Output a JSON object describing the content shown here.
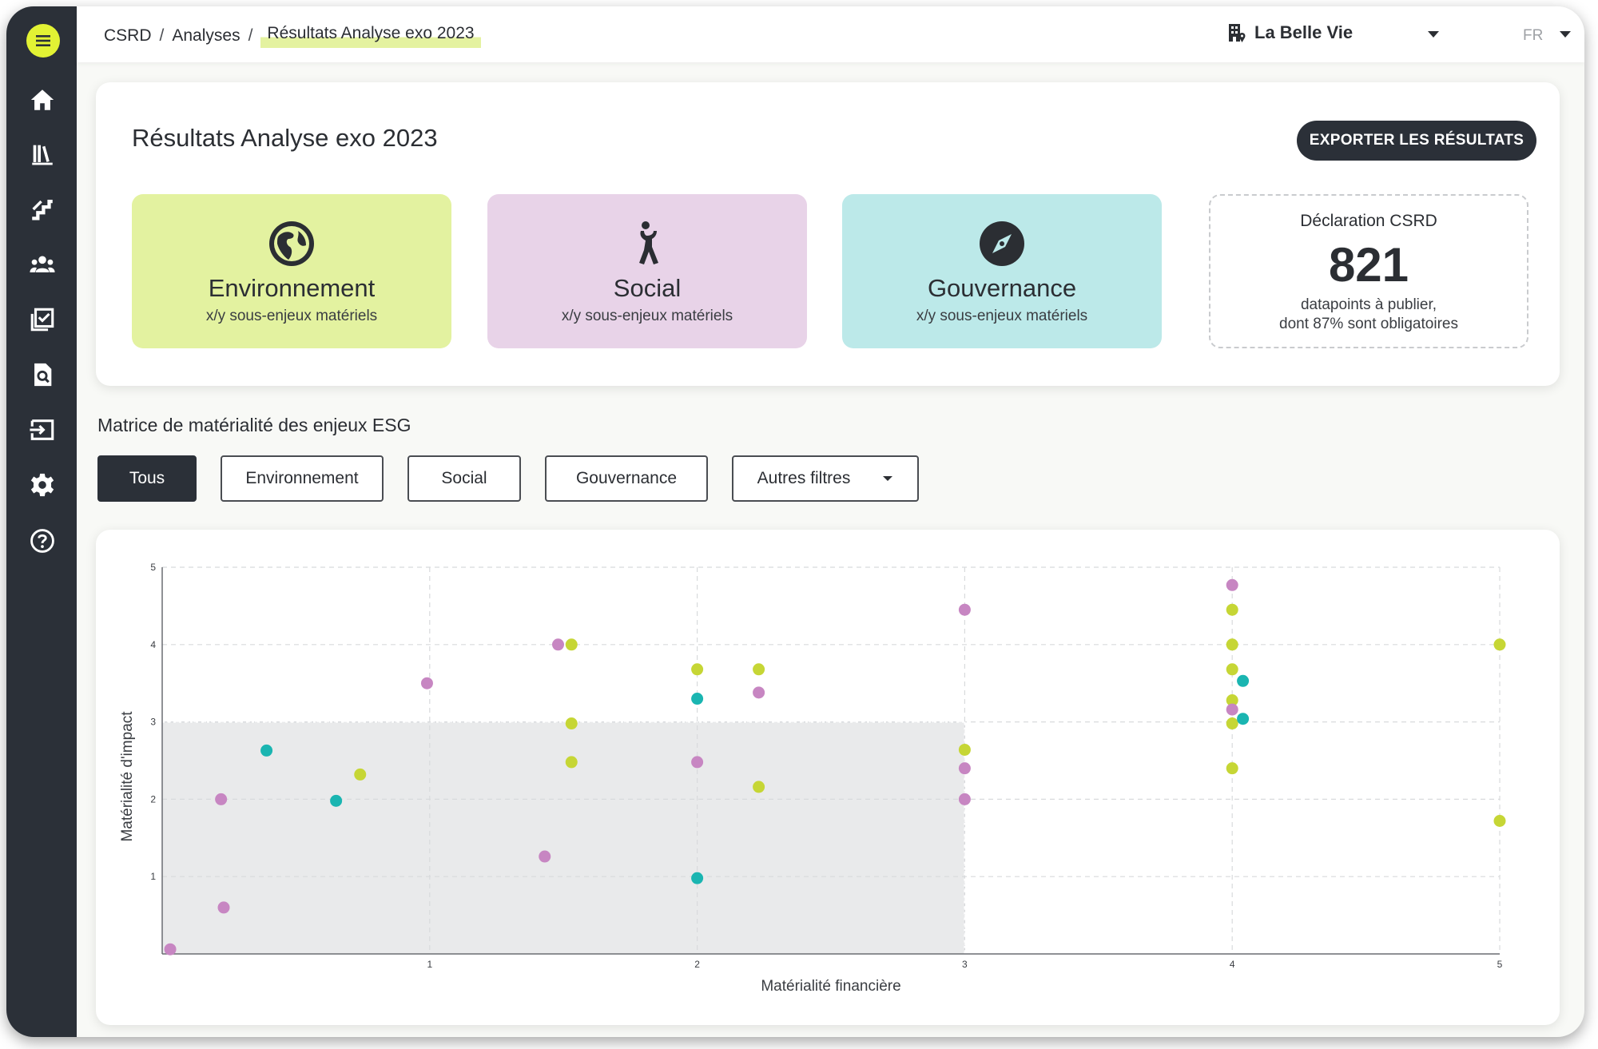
{
  "breadcrumb": {
    "items": [
      "CSRD",
      "Analyses"
    ],
    "current": "Résultats Analyse exo 2023",
    "separator": "/"
  },
  "header": {
    "organization": "La Belle Vie",
    "language": "FR"
  },
  "sidebar": {
    "items": [
      {
        "name": "home",
        "icon": "home-icon"
      },
      {
        "name": "library",
        "icon": "library-icon"
      },
      {
        "name": "steps",
        "icon": "stairs-icon"
      },
      {
        "name": "stakeholders",
        "icon": "users-icon"
      },
      {
        "name": "tasks",
        "icon": "checklist-icon"
      },
      {
        "name": "audit",
        "icon": "document-search-icon"
      },
      {
        "name": "import",
        "icon": "import-icon"
      },
      {
        "name": "settings",
        "icon": "gear-icon"
      },
      {
        "name": "help",
        "icon": "help-icon"
      }
    ]
  },
  "summary": {
    "title": "Résultats Analyse exo 2023",
    "export_label": "EXPORTER LES RÉSULTATS",
    "tiles": [
      {
        "name": "Environnement",
        "sub": "x/y sous-enjeux matériels",
        "color": "#e3f2a0",
        "icon": "globe-icon"
      },
      {
        "name": "Social",
        "sub": "x/y sous-enjeux matériels",
        "color": "#e8d3e8",
        "icon": "person-icon"
      },
      {
        "name": "Gouvernance",
        "sub": "x/y sous-enjeux matériels",
        "color": "#bce9e9",
        "icon": "compass-icon"
      }
    ],
    "declaration": {
      "title": "Déclaration CSRD",
      "count": "821",
      "line1": "datapoints à publier,",
      "line2": "dont 87% sont obligatoires"
    }
  },
  "matrix": {
    "title": "Matrice de matérialité des enjeux ESG",
    "filters": [
      "Tous",
      "Environnement",
      "Social",
      "Gouvernance"
    ],
    "active_filter": "Tous",
    "more_filters": "Autres filtres"
  },
  "chart_data": {
    "type": "scatter",
    "xlabel": "Matérialité financière",
    "ylabel": "Matérialité d'impact",
    "xlim": [
      0,
      5
    ],
    "ylim": [
      0,
      5
    ],
    "xticks": [
      1,
      2,
      3,
      4,
      5
    ],
    "yticks": [
      1,
      2,
      3,
      4,
      5
    ],
    "grid": "dashed",
    "shaded_region": {
      "x": [
        0,
        3
      ],
      "y": [
        0,
        3
      ]
    },
    "colors": {
      "Environnement": "#c6d635",
      "Social": "#c786c2",
      "Gouvernance": "#1ab5b1"
    },
    "series": [
      {
        "name": "Environnement",
        "points": [
          [
            1.53,
            4.0
          ],
          [
            2.0,
            3.68
          ],
          [
            2.23,
            3.68
          ],
          [
            1.53,
            2.98
          ],
          [
            1.53,
            2.48
          ],
          [
            0.74,
            2.32
          ],
          [
            2.23,
            2.16
          ],
          [
            3.0,
            2.64
          ],
          [
            4.0,
            4.45
          ],
          [
            4.0,
            4.0
          ],
          [
            4.0,
            3.68
          ],
          [
            4.0,
            3.28
          ],
          [
            4.0,
            2.98
          ],
          [
            4.0,
            2.4
          ],
          [
            5.0,
            4.0
          ],
          [
            5.0,
            1.72
          ]
        ]
      },
      {
        "name": "Social",
        "points": [
          [
            1.48,
            4.0
          ],
          [
            0.99,
            3.5
          ],
          [
            2.0,
            2.48
          ],
          [
            2.23,
            3.38
          ],
          [
            0.22,
            2.0
          ],
          [
            1.43,
            1.26
          ],
          [
            0.23,
            0.6
          ],
          [
            0.03,
            0.06
          ],
          [
            3.0,
            4.45
          ],
          [
            3.0,
            2.4
          ],
          [
            3.0,
            2.0
          ],
          [
            4.0,
            4.77
          ],
          [
            4.0,
            3.16
          ]
        ]
      },
      {
        "name": "Gouvernance",
        "points": [
          [
            0.39,
            2.63
          ],
          [
            0.65,
            1.98
          ],
          [
            2.0,
            3.3
          ],
          [
            2.0,
            0.98
          ],
          [
            4.04,
            3.53
          ],
          [
            4.04,
            3.04
          ]
        ]
      }
    ]
  }
}
